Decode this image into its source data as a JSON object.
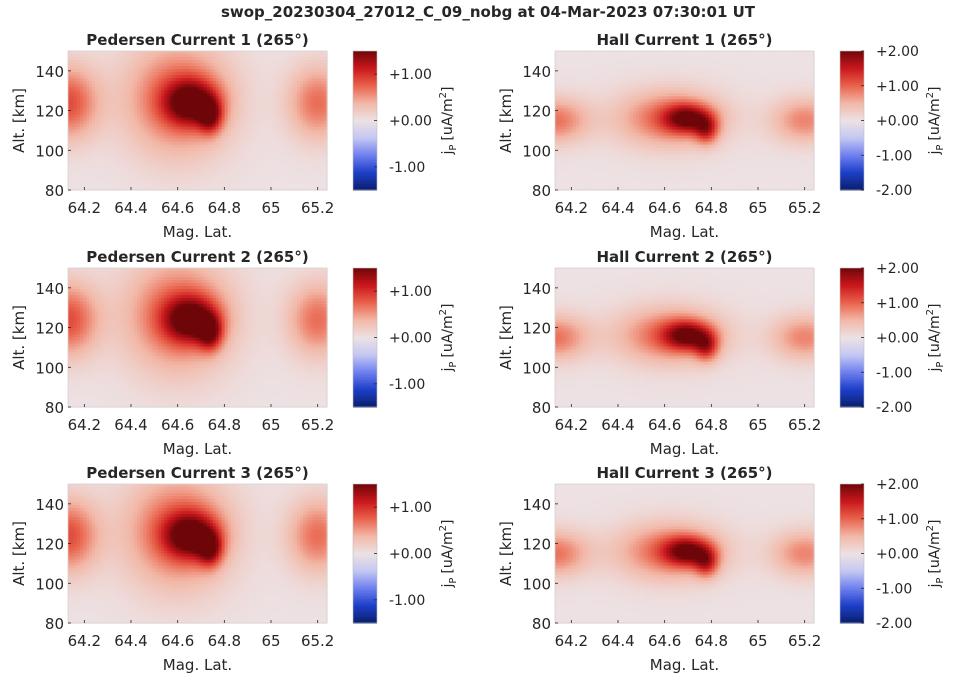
{
  "figure": {
    "title": "swop_20230304_27012_C_09_nobg at 04-Mar-2023 07:30:01 UT"
  },
  "colors": {
    "colormap": [
      "#0a1f6e",
      "#1d3fc8",
      "#6f80ef",
      "#c4c8f2",
      "#ede1e3",
      "#f2b7a6",
      "#e9624b",
      "#c9171c",
      "#6e0609"
    ],
    "background": "#ede1e3",
    "axis": "#262626"
  },
  "chart_data": [
    {
      "type": "heatmap",
      "title": "Pedersen Current 1 (265°)",
      "xlabel": "Mag. Lat.",
      "ylabel": "Alt. [km]",
      "xlim": [
        64.13,
        65.24
      ],
      "ylim": [
        80,
        150
      ],
      "xticks": [
        64.2,
        64.4,
        64.6,
        64.8,
        65,
        65.2
      ],
      "xtick_labels": [
        "64.2",
        "64.4",
        "64.6",
        "64.8",
        "65",
        "65.2"
      ],
      "yticks": [
        80,
        100,
        120,
        140
      ],
      "ytick_labels": [
        "80",
        "100",
        "120",
        "140"
      ],
      "colorbar": {
        "label_main": "j",
        "label_sub": "P",
        "label_unit": "[uA/m",
        "label_sup": "2",
        "label_close": "]",
        "range": [
          -1.5,
          1.5
        ],
        "ticks": [
          1.0,
          0.0,
          -1.0
        ],
        "tick_labels": [
          "+1.00",
          "+0.00",
          "-1.00"
        ]
      },
      "field": {
        "bands": [
          {
            "x": 64.13,
            "y": 124,
            "sx": 0.09,
            "sy": 13,
            "amp": 0.85
          },
          {
            "x": 64.6,
            "y": 126,
            "sx": 0.16,
            "sy": 20,
            "amp": 0.8
          },
          {
            "x": 65.2,
            "y": 124,
            "sx": 0.09,
            "sy": 13,
            "amp": 0.7
          }
        ],
        "hotspots": [
          {
            "x": 64.66,
            "y": 124,
            "sx": 0.08,
            "sy": 8,
            "amp": 1.2
          },
          {
            "x": 64.74,
            "y": 117,
            "sx": 0.035,
            "sy": 6,
            "amp": 0.9
          }
        ]
      }
    },
    {
      "type": "heatmap",
      "title": "Hall Current 1 (265°)",
      "xlabel": "Mag. Lat.",
      "ylabel": "Alt. [km]",
      "xlim": [
        64.13,
        65.24
      ],
      "ylim": [
        80,
        150
      ],
      "xticks": [
        64.2,
        64.4,
        64.6,
        64.8,
        65,
        65.2
      ],
      "xtick_labels": [
        "64.2",
        "64.4",
        "64.6",
        "64.8",
        "65",
        "65.2"
      ],
      "yticks": [
        80,
        100,
        120,
        140
      ],
      "ytick_labels": [
        "80",
        "100",
        "120",
        "140"
      ],
      "colorbar": {
        "label_main": "j",
        "label_sub": "P",
        "label_unit": "[uA/m",
        "label_sup": "2",
        "label_close": "]",
        "range": [
          -2,
          2
        ],
        "ticks": [
          2.0,
          1.0,
          0.0,
          -1.0,
          -2.0
        ],
        "tick_labels": [
          "+2.00",
          "+1.00",
          "+0.00",
          "-1.00",
          "-2.00"
        ]
      },
      "field": {
        "bands": [
          {
            "x": 64.13,
            "y": 115,
            "sx": 0.1,
            "sy": 8,
            "amp": 0.9
          },
          {
            "x": 64.62,
            "y": 116,
            "sx": 0.16,
            "sy": 10,
            "amp": 1.0
          },
          {
            "x": 65.2,
            "y": 115,
            "sx": 0.1,
            "sy": 8,
            "amp": 0.8
          }
        ],
        "hotspots": [
          {
            "x": 64.7,
            "y": 116,
            "sx": 0.07,
            "sy": 5,
            "amp": 1.4
          },
          {
            "x": 64.78,
            "y": 110,
            "sx": 0.035,
            "sy": 5,
            "amp": 1.0
          }
        ]
      }
    },
    {
      "type": "heatmap",
      "title": "Pedersen Current 2 (265°)",
      "xlabel": "Mag. Lat.",
      "ylabel": "Alt. [km]",
      "xlim": [
        64.13,
        65.24
      ],
      "ylim": [
        80,
        150
      ],
      "xticks": [
        64.2,
        64.4,
        64.6,
        64.8,
        65,
        65.2
      ],
      "xtick_labels": [
        "64.2",
        "64.4",
        "64.6",
        "64.8",
        "65",
        "65.2"
      ],
      "yticks": [
        80,
        100,
        120,
        140
      ],
      "ytick_labels": [
        "80",
        "100",
        "120",
        "140"
      ],
      "colorbar": {
        "label_main": "j",
        "label_sub": "P",
        "label_unit": "[uA/m",
        "label_sup": "2",
        "label_close": "]",
        "range": [
          -1.5,
          1.5
        ],
        "ticks": [
          1.0,
          0.0,
          -1.0
        ],
        "tick_labels": [
          "+1.00",
          "+0.00",
          "-1.00"
        ]
      },
      "field": {
        "bands": [
          {
            "x": 64.13,
            "y": 124,
            "sx": 0.09,
            "sy": 13,
            "amp": 0.85
          },
          {
            "x": 64.6,
            "y": 126,
            "sx": 0.16,
            "sy": 20,
            "amp": 0.8
          },
          {
            "x": 65.2,
            "y": 124,
            "sx": 0.09,
            "sy": 13,
            "amp": 0.7
          }
        ],
        "hotspots": [
          {
            "x": 64.66,
            "y": 124,
            "sx": 0.08,
            "sy": 8,
            "amp": 1.2
          },
          {
            "x": 64.74,
            "y": 117,
            "sx": 0.035,
            "sy": 6,
            "amp": 0.9
          }
        ]
      }
    },
    {
      "type": "heatmap",
      "title": "Hall Current 2 (265°)",
      "xlabel": "Mag. Lat.",
      "ylabel": "Alt. [km]",
      "xlim": [
        64.13,
        65.24
      ],
      "ylim": [
        80,
        150
      ],
      "xticks": [
        64.2,
        64.4,
        64.6,
        64.8,
        65,
        65.2
      ],
      "xtick_labels": [
        "64.2",
        "64.4",
        "64.6",
        "64.8",
        "65",
        "65.2"
      ],
      "yticks": [
        80,
        100,
        120,
        140
      ],
      "ytick_labels": [
        "80",
        "100",
        "120",
        "140"
      ],
      "colorbar": {
        "label_main": "j",
        "label_sub": "P",
        "label_unit": "[uA/m",
        "label_sup": "2",
        "label_close": "]",
        "range": [
          -2,
          2
        ],
        "ticks": [
          2.0,
          1.0,
          0.0,
          -1.0,
          -2.0
        ],
        "tick_labels": [
          "+2.00",
          "+1.00",
          "+0.00",
          "-1.00",
          "-2.00"
        ]
      },
      "field": {
        "bands": [
          {
            "x": 64.13,
            "y": 115,
            "sx": 0.1,
            "sy": 8,
            "amp": 0.9
          },
          {
            "x": 64.62,
            "y": 116,
            "sx": 0.16,
            "sy": 10,
            "amp": 1.0
          },
          {
            "x": 65.2,
            "y": 115,
            "sx": 0.1,
            "sy": 8,
            "amp": 0.8
          }
        ],
        "hotspots": [
          {
            "x": 64.7,
            "y": 116,
            "sx": 0.07,
            "sy": 5,
            "amp": 1.4
          },
          {
            "x": 64.78,
            "y": 110,
            "sx": 0.035,
            "sy": 5,
            "amp": 1.0
          }
        ]
      }
    },
    {
      "type": "heatmap",
      "title": "Pedersen Current 3 (265°)",
      "xlabel": "Mag. Lat.",
      "ylabel": "Alt. [km]",
      "xlim": [
        64.13,
        65.24
      ],
      "ylim": [
        80,
        150
      ],
      "xticks": [
        64.2,
        64.4,
        64.6,
        64.8,
        65,
        65.2
      ],
      "xtick_labels": [
        "64.2",
        "64.4",
        "64.6",
        "64.8",
        "65",
        "65.2"
      ],
      "yticks": [
        80,
        100,
        120,
        140
      ],
      "ytick_labels": [
        "80",
        "100",
        "120",
        "140"
      ],
      "colorbar": {
        "label_main": "j",
        "label_sub": "P",
        "label_unit": "[uA/m",
        "label_sup": "2",
        "label_close": "]",
        "range": [
          -1.5,
          1.5
        ],
        "ticks": [
          1.0,
          0.0,
          -1.0
        ],
        "tick_labels": [
          "+1.00",
          "+0.00",
          "-1.00"
        ]
      },
      "field": {
        "bands": [
          {
            "x": 64.13,
            "y": 124,
            "sx": 0.09,
            "sy": 13,
            "amp": 0.85
          },
          {
            "x": 64.6,
            "y": 126,
            "sx": 0.16,
            "sy": 20,
            "amp": 0.8
          },
          {
            "x": 65.2,
            "y": 124,
            "sx": 0.09,
            "sy": 13,
            "amp": 0.7
          }
        ],
        "hotspots": [
          {
            "x": 64.66,
            "y": 124,
            "sx": 0.08,
            "sy": 8,
            "amp": 1.2
          },
          {
            "x": 64.74,
            "y": 117,
            "sx": 0.035,
            "sy": 6,
            "amp": 0.9
          }
        ]
      }
    },
    {
      "type": "heatmap",
      "title": "Hall Current 3 (265°)",
      "xlabel": "Mag. Lat.",
      "ylabel": "Alt. [km]",
      "xlim": [
        64.13,
        65.24
      ],
      "ylim": [
        80,
        150
      ],
      "xticks": [
        64.2,
        64.4,
        64.6,
        64.8,
        65,
        65.2
      ],
      "xtick_labels": [
        "64.2",
        "64.4",
        "64.6",
        "64.8",
        "65",
        "65.2"
      ],
      "yticks": [
        80,
        100,
        120,
        140
      ],
      "ytick_labels": [
        "80",
        "100",
        "120",
        "140"
      ],
      "colorbar": {
        "label_main": "j",
        "label_sub": "P",
        "label_unit": "[uA/m",
        "label_sup": "2",
        "label_close": "]",
        "range": [
          -2,
          2
        ],
        "ticks": [
          2.0,
          1.0,
          0.0,
          -1.0,
          -2.0
        ],
        "tick_labels": [
          "+2.00",
          "+1.00",
          "+0.00",
          "-1.00",
          "-2.00"
        ]
      },
      "field": {
        "bands": [
          {
            "x": 64.13,
            "y": 115,
            "sx": 0.1,
            "sy": 8,
            "amp": 0.9
          },
          {
            "x": 64.62,
            "y": 116,
            "sx": 0.16,
            "sy": 10,
            "amp": 1.0
          },
          {
            "x": 65.2,
            "y": 115,
            "sx": 0.1,
            "sy": 8,
            "amp": 0.8
          }
        ],
        "hotspots": [
          {
            "x": 64.7,
            "y": 116,
            "sx": 0.07,
            "sy": 5,
            "amp": 1.4
          },
          {
            "x": 64.78,
            "y": 110,
            "sx": 0.035,
            "sy": 5,
            "amp": 1.0
          }
        ]
      }
    }
  ]
}
